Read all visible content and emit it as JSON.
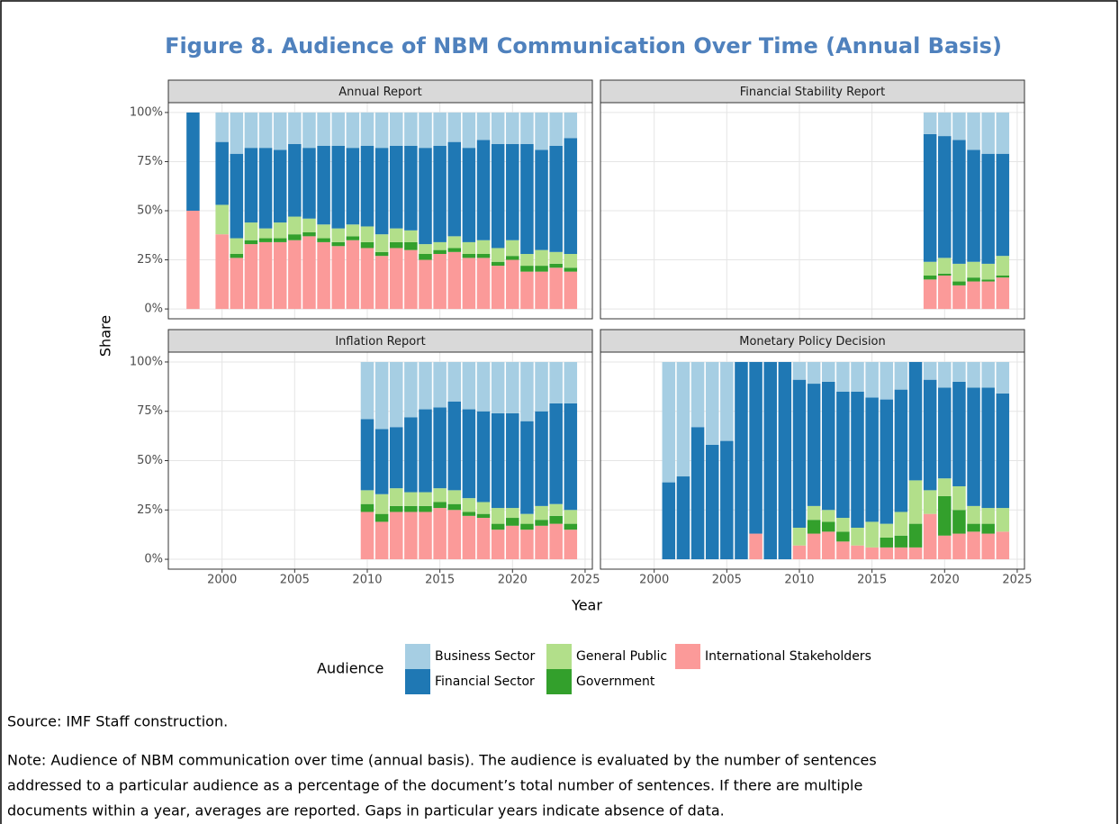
{
  "title": "Figure 8. Audience of NBM Communication Over Time (Annual Basis)",
  "xlabel": "Year",
  "ylabel": "Share",
  "legend_title": "Audience",
  "source": "Source: IMF Staff construction.",
  "note": [
    "Note: Audience of NBM communication over time (annual basis). The audience is evaluated by the number of sentences",
    "addressed to a particular audience as a percentage of the document’s total number of sentences. If there are multiple",
    "documents within a year, averages are reported. Gaps in particular years indicate absence of data."
  ],
  "chart_data": [
    {
      "type": "bar",
      "stacked": true,
      "title": "Annual Report",
      "x": [
        1998,
        2000,
        2001,
        2002,
        2003,
        2004,
        2005,
        2006,
        2007,
        2008,
        2009,
        2010,
        2011,
        2012,
        2013,
        2014,
        2015,
        2016,
        2017,
        2018,
        2019,
        2020,
        2021,
        2022,
        2023,
        2024
      ],
      "series": [
        {
          "name": "Business Sector",
          "color": "#a6cee3",
          "values": [
            0,
            15,
            21,
            18,
            18,
            19,
            16,
            18,
            17,
            17,
            18,
            17,
            18,
            17,
            17,
            18,
            17,
            15,
            18,
            14,
            16,
            16,
            16,
            19,
            17,
            13
          ]
        },
        {
          "name": "Financial Sector",
          "color": "#1f78b4",
          "values": [
            50,
            32,
            43,
            38,
            41,
            37,
            37,
            36,
            40,
            42,
            39,
            41,
            44,
            42,
            43,
            49,
            49,
            48,
            48,
            51,
            53,
            49,
            56,
            51,
            54,
            59
          ]
        },
        {
          "name": "General Public",
          "color": "#b2df8a",
          "values": [
            0,
            15,
            8,
            9,
            5,
            8,
            9,
            7,
            7,
            7,
            6,
            8,
            9,
            7,
            6,
            5,
            4,
            6,
            6,
            7,
            7,
            8,
            6,
            8,
            6,
            7
          ]
        },
        {
          "name": "Government",
          "color": "#33a02c",
          "values": [
            0,
            0,
            2,
            2,
            2,
            2,
            3,
            2,
            2,
            2,
            2,
            3,
            2,
            3,
            4,
            3,
            2,
            2,
            2,
            2,
            2,
            2,
            3,
            3,
            2,
            2
          ]
        },
        {
          "name": "International Stakeholders",
          "color": "#fb9a99",
          "values": [
            50,
            38,
            26,
            33,
            34,
            34,
            35,
            37,
            34,
            32,
            35,
            31,
            27,
            31,
            30,
            25,
            28,
            29,
            26,
            26,
            22,
            25,
            19,
            19,
            21,
            19
          ]
        }
      ],
      "xlim": [
        1996.3,
        2025.5
      ],
      "xticks": [
        2000,
        2005,
        2010,
        2015,
        2020,
        2025
      ],
      "ylim": [
        -5,
        105
      ],
      "yticks": [
        {
          "value": 0,
          "label": "0%"
        },
        {
          "value": 25,
          "label": "25%"
        },
        {
          "value": 50,
          "label": "50%"
        },
        {
          "value": 75,
          "label": "75%"
        },
        {
          "value": 100,
          "label": "100%"
        }
      ]
    },
    {
      "type": "bar",
      "stacked": true,
      "title": "Financial Stability Report",
      "x": [
        2019,
        2020,
        2021,
        2022,
        2023,
        2024
      ],
      "series": [
        {
          "name": "Business Sector",
          "color": "#a6cee3",
          "values": [
            11,
            12,
            14,
            19,
            21,
            21
          ]
        },
        {
          "name": "Financial Sector",
          "color": "#1f78b4",
          "values": [
            65,
            62,
            63,
            57,
            56,
            52
          ]
        },
        {
          "name": "General Public",
          "color": "#b2df8a",
          "values": [
            7,
            8,
            9,
            8,
            8,
            10
          ]
        },
        {
          "name": "Government",
          "color": "#33a02c",
          "values": [
            2,
            1,
            2,
            2,
            1,
            1
          ]
        },
        {
          "name": "International Stakeholders",
          "color": "#fb9a99",
          "values": [
            15,
            17,
            12,
            14,
            14,
            16
          ]
        }
      ],
      "xlim": [
        1996.3,
        2025.5
      ],
      "xticks": [
        2000,
        2005,
        2010,
        2015,
        2020,
        2025
      ],
      "ylim": [
        -5,
        105
      ],
      "yticks": [
        {
          "value": 0,
          "label": "0%"
        },
        {
          "value": 25,
          "label": "25%"
        },
        {
          "value": 50,
          "label": "50%"
        },
        {
          "value": 75,
          "label": "75%"
        },
        {
          "value": 100,
          "label": "100%"
        }
      ]
    },
    {
      "type": "bar",
      "stacked": true,
      "title": "Inflation Report",
      "x": [
        2010,
        2011,
        2012,
        2013,
        2014,
        2015,
        2016,
        2017,
        2018,
        2019,
        2020,
        2021,
        2022,
        2023,
        2024
      ],
      "series": [
        {
          "name": "Business Sector",
          "color": "#a6cee3",
          "values": [
            29,
            34,
            33,
            28,
            24,
            23,
            20,
            24,
            25,
            26,
            26,
            30,
            25,
            21,
            21
          ]
        },
        {
          "name": "Financial Sector",
          "color": "#1f78b4",
          "values": [
            36,
            33,
            31,
            38,
            42,
            41,
            45,
            45,
            46,
            48,
            48,
            47,
            48,
            51,
            54
          ]
        },
        {
          "name": "General Public",
          "color": "#b2df8a",
          "values": [
            7,
            10,
            9,
            7,
            7,
            7,
            7,
            7,
            6,
            8,
            5,
            5,
            7,
            6,
            7
          ]
        },
        {
          "name": "Government",
          "color": "#33a02c",
          "values": [
            4,
            4,
            3,
            3,
            3,
            3,
            3,
            2,
            2,
            3,
            4,
            3,
            3,
            4,
            3
          ]
        },
        {
          "name": "International Stakeholders",
          "color": "#fb9a99",
          "values": [
            24,
            19,
            24,
            24,
            24,
            26,
            25,
            22,
            21,
            15,
            17,
            15,
            17,
            18,
            15
          ]
        }
      ],
      "xlim": [
        1996.3,
        2025.5
      ],
      "xticks": [
        2000,
        2005,
        2010,
        2015,
        2020,
        2025
      ],
      "ylim": [
        -5,
        105
      ],
      "yticks": [
        {
          "value": 0,
          "label": "0%"
        },
        {
          "value": 25,
          "label": "25%"
        },
        {
          "value": 50,
          "label": "50%"
        },
        {
          "value": 75,
          "label": "75%"
        },
        {
          "value": 100,
          "label": "100%"
        }
      ]
    },
    {
      "type": "bar",
      "stacked": true,
      "title": "Monetary Policy Decision",
      "x": [
        2001,
        2002,
        2003,
        2004,
        2005,
        2006,
        2007,
        2008,
        2009,
        2010,
        2011,
        2012,
        2013,
        2014,
        2015,
        2016,
        2017,
        2018,
        2019,
        2020,
        2021,
        2022,
        2023,
        2024
      ],
      "series": [
        {
          "name": "Business Sector",
          "color": "#a6cee3",
          "values": [
            61,
            58,
            33,
            42,
            40,
            0,
            0,
            0,
            0,
            9,
            11,
            10,
            15,
            15,
            18,
            19,
            14,
            0,
            9,
            13,
            10,
            13,
            13,
            16
          ]
        },
        {
          "name": "Financial Sector",
          "color": "#1f78b4",
          "values": [
            39,
            42,
            67,
            58,
            60,
            100,
            87,
            100,
            100,
            75,
            62,
            65,
            64,
            69,
            63,
            63,
            62,
            60,
            56,
            46,
            53,
            60,
            61,
            58
          ]
        },
        {
          "name": "General Public",
          "color": "#b2df8a",
          "values": [
            0,
            0,
            0,
            0,
            0,
            0,
            0,
            0,
            0,
            9,
            7,
            6,
            7,
            9,
            13,
            7,
            12,
            22,
            12,
            9,
            12,
            9,
            8,
            12
          ]
        },
        {
          "name": "Government",
          "color": "#33a02c",
          "values": [
            0,
            0,
            0,
            0,
            0,
            0,
            0,
            0,
            0,
            0,
            7,
            5,
            5,
            0,
            0,
            5,
            6,
            12,
            0,
            20,
            12,
            4,
            5,
            0
          ]
        },
        {
          "name": "International Stakeholders",
          "color": "#fb9a99",
          "values": [
            0,
            0,
            0,
            0,
            0,
            0,
            13,
            0,
            0,
            7,
            13,
            14,
            9,
            7,
            6,
            6,
            6,
            6,
            23,
            12,
            13,
            14,
            13,
            14
          ]
        }
      ],
      "xlim": [
        1996.3,
        2025.5
      ],
      "xticks": [
        2000,
        2005,
        2010,
        2015,
        2020,
        2025
      ],
      "ylim": [
        -5,
        105
      ],
      "yticks": [
        {
          "value": 0,
          "label": "0%"
        },
        {
          "value": 25,
          "label": "25%"
        },
        {
          "value": 50,
          "label": "50%"
        },
        {
          "value": 75,
          "label": "75%"
        },
        {
          "value": 100,
          "label": "100%"
        }
      ]
    }
  ]
}
